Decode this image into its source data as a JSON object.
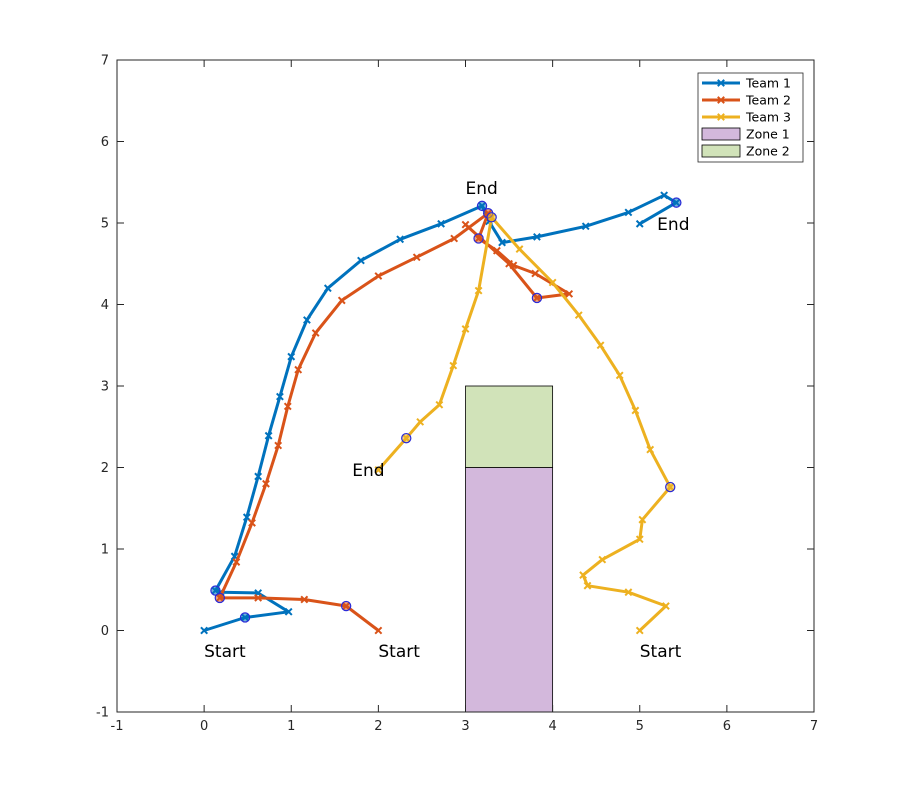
{
  "chart_data": {
    "type": "line",
    "title": "",
    "xlabel": "",
    "ylabel": "",
    "xlim": [
      -1,
      7
    ],
    "ylim": [
      -1,
      7
    ],
    "xticks": [
      "-1",
      "0",
      "1",
      "2",
      "3",
      "4",
      "5",
      "6",
      "7"
    ],
    "yticks": [
      "-1",
      "0",
      "1",
      "2",
      "3",
      "4",
      "5",
      "6",
      "7"
    ],
    "grid": false,
    "legend_position": "top-right",
    "series": [
      {
        "name": "Team 1",
        "color": "#0072bd",
        "x": [
          0.0,
          0.47,
          0.97,
          0.62,
          0.19,
          0.13,
          0.35,
          0.49,
          0.62,
          0.74,
          0.87,
          1.0,
          1.18,
          1.42,
          1.8,
          2.25,
          2.72,
          3.19,
          3.27,
          3.42,
          3.82,
          4.38,
          4.87,
          5.28,
          5.42,
          5.0
        ],
        "y": [
          0.0,
          0.16,
          0.23,
          0.46,
          0.47,
          0.49,
          0.91,
          1.39,
          1.89,
          2.39,
          2.87,
          3.36,
          3.81,
          4.2,
          4.54,
          4.8,
          4.99,
          5.21,
          5.02,
          4.76,
          4.83,
          4.96,
          5.13,
          5.34,
          5.25,
          4.99
        ]
      },
      {
        "name": "Team 2",
        "color": "#d95319",
        "x": [
          2.0,
          1.63,
          1.15,
          0.62,
          0.18,
          0.37,
          0.55,
          0.71,
          0.85,
          0.96,
          1.08,
          1.28,
          1.58,
          2.0,
          2.44,
          2.87,
          3.26,
          3.15,
          3.36,
          3.55,
          3.8,
          4.19,
          3.82,
          3.5,
          3.0
        ],
        "y": [
          0.0,
          0.3,
          0.38,
          0.4,
          0.4,
          0.84,
          1.32,
          1.8,
          2.27,
          2.75,
          3.2,
          3.65,
          4.05,
          4.35,
          4.58,
          4.81,
          5.12,
          4.81,
          4.66,
          4.48,
          4.38,
          4.13,
          4.08,
          4.5,
          4.98
        ]
      },
      {
        "name": "Team 3",
        "color": "#edb120",
        "x": [
          5.0,
          5.3,
          4.87,
          4.4,
          4.35,
          4.57,
          5.0,
          5.03,
          5.35,
          5.12,
          4.95,
          4.77,
          4.55,
          4.3,
          4.0,
          3.62,
          3.3,
          3.15,
          3.0,
          2.86,
          2.7,
          2.48,
          2.32,
          2.0
        ],
        "y": [
          0.0,
          0.3,
          0.47,
          0.55,
          0.68,
          0.87,
          1.12,
          1.36,
          1.76,
          2.22,
          2.7,
          3.13,
          3.5,
          3.87,
          4.27,
          4.68,
          5.07,
          4.17,
          3.7,
          3.25,
          2.77,
          2.56,
          2.36,
          1.97
        ]
      }
    ],
    "circled_points": [
      {
        "series": "Team 1",
        "x": [
          0.47,
          0.13,
          3.19,
          5.42
        ]
      },
      {
        "series": "Team 2",
        "x": [
          1.63,
          0.18,
          3.26,
          3.15,
          3.82
        ]
      },
      {
        "series": "Team 3",
        "x": [
          5.35,
          5.35,
          3.3,
          2.32
        ]
      }
    ],
    "zones": [
      {
        "name": "Zone 1",
        "x": [
          3,
          4
        ],
        "y": [
          -1,
          2
        ],
        "color": "#d3b8dc"
      },
      {
        "name": "Zone 2",
        "x": [
          3,
          4
        ],
        "y": [
          2,
          3
        ],
        "color": "#d1e3b9"
      }
    ],
    "annotations": [
      {
        "text": "Start",
        "x": 0.0,
        "y": -0.25
      },
      {
        "text": "Start",
        "x": 2.0,
        "y": -0.25
      },
      {
        "text": "Start",
        "x": 5.0,
        "y": -0.25
      },
      {
        "text": "End",
        "x": 3.0,
        "y": 5.43
      },
      {
        "text": "End",
        "x": 5.2,
        "y": 4.99
      },
      {
        "text": "End",
        "x": 1.7,
        "y": 1.97
      }
    ]
  }
}
